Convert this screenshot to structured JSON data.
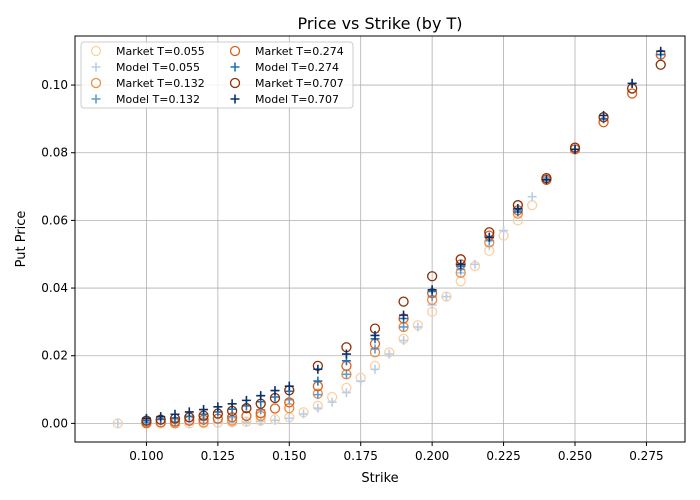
{
  "chart_data": {
    "type": "scatter",
    "title": "Price vs Strike (by T)",
    "xlabel": "Strike",
    "ylabel": "Put Price",
    "xlim": [
      0.075,
      0.2885
    ],
    "ylim": [
      -0.0055,
      0.1145
    ],
    "xticks": [
      0.1,
      0.125,
      0.15,
      0.175,
      0.2,
      0.225,
      0.25,
      0.275
    ],
    "xtick_labels": [
      "0.100",
      "0.125",
      "0.150",
      "0.175",
      "0.200",
      "0.225",
      "0.250",
      "0.275"
    ],
    "yticks": [
      0.0,
      0.02,
      0.04,
      0.06,
      0.08,
      0.1
    ],
    "ytick_labels": [
      "0.00",
      "0.02",
      "0.04",
      "0.06",
      "0.08",
      "0.10"
    ],
    "grid": true,
    "legend": {
      "placement": "top-left",
      "columns": 2,
      "entries": [
        {
          "label": "Market T=0.055",
          "marker": "circle",
          "color": "#fdd0a2"
        },
        {
          "label": "Model  T=0.055",
          "marker": "plus",
          "color": "#b7cfe8"
        },
        {
          "label": "Market T=0.132",
          "marker": "circle",
          "color": "#f08c3e"
        },
        {
          "label": "Model  T=0.132",
          "marker": "plus",
          "color": "#5e9ccf"
        },
        {
          "label": "Market T=0.274",
          "marker": "circle",
          "color": "#d95f1e"
        },
        {
          "label": "Model  T=0.274",
          "marker": "plus",
          "color": "#2171b5"
        },
        {
          "label": "Market T=0.707",
          "marker": "circle",
          "color": "#8c2d04"
        },
        {
          "label": "Model  T=0.707",
          "marker": "plus",
          "color": "#08306b"
        }
      ]
    },
    "series": [
      {
        "name": "Market T=0.055",
        "marker": "circle",
        "color": "#fdd0a2",
        "x": [
          0.09,
          0.1,
          0.105,
          0.11,
          0.115,
          0.12,
          0.125,
          0.13,
          0.135,
          0.14,
          0.145,
          0.15,
          0.155,
          0.16,
          0.165,
          0.17,
          0.175,
          0.18,
          0.185,
          0.19,
          0.195,
          0.2,
          0.205,
          0.21,
          0.215,
          0.22,
          0.225,
          0.23,
          0.235
        ],
        "y": [
          0.0,
          0.0,
          0.0,
          0.0,
          0.0,
          0.0001,
          0.0002,
          0.0003,
          0.0005,
          0.0008,
          0.0012,
          0.0018,
          0.0033,
          0.0052,
          0.0078,
          0.0105,
          0.0135,
          0.017,
          0.021,
          0.025,
          0.029,
          0.033,
          0.0375,
          0.042,
          0.0465,
          0.051,
          0.0555,
          0.06,
          0.0645
        ]
      },
      {
        "name": "Model  T=0.055",
        "marker": "plus",
        "color": "#b7cfe8",
        "x": [
          0.09,
          0.1,
          0.105,
          0.11,
          0.115,
          0.12,
          0.125,
          0.13,
          0.135,
          0.14,
          0.145,
          0.15,
          0.155,
          0.16,
          0.165,
          0.17,
          0.175,
          0.18,
          0.185,
          0.19,
          0.195,
          0.2,
          0.205,
          0.21,
          0.215,
          0.22,
          0.225,
          0.23,
          0.235
        ],
        "y": [
          0.0,
          0.0,
          0.0,
          0.0,
          0.0,
          0.0001,
          0.0001,
          0.0002,
          0.0004,
          0.0006,
          0.0009,
          0.0015,
          0.0028,
          0.0045,
          0.0063,
          0.0091,
          0.0125,
          0.016,
          0.0205,
          0.0245,
          0.0285,
          0.035,
          0.0375,
          0.0445,
          0.047,
          0.0525,
          0.057,
          0.0625,
          0.067
        ]
      },
      {
        "name": "Market T=0.132",
        "marker": "circle",
        "color": "#f08c3e",
        "x": [
          0.1,
          0.11,
          0.12,
          0.13,
          0.14,
          0.15,
          0.16,
          0.17,
          0.18,
          0.19,
          0.2,
          0.21,
          0.22,
          0.23,
          0.24
        ],
        "y": [
          0.0,
          0.0,
          0.0003,
          0.0008,
          0.0022,
          0.0045,
          0.0088,
          0.0145,
          0.021,
          0.0285,
          0.0365,
          0.0445,
          0.0535,
          0.062,
          0.072
        ]
      },
      {
        "name": "Model  T=0.132",
        "marker": "plus",
        "color": "#5e9ccf",
        "x": [
          0.1,
          0.11,
          0.12,
          0.13,
          0.14,
          0.15,
          0.16,
          0.17,
          0.18,
          0.19,
          0.2,
          0.21,
          0.22,
          0.23,
          0.24
        ],
        "y": [
          0.0002,
          0.0005,
          0.001,
          0.002,
          0.004,
          0.007,
          0.0085,
          0.0145,
          0.022,
          0.0285,
          0.0375,
          0.0455,
          0.054,
          0.063,
          0.0725
        ]
      },
      {
        "name": "Market T=0.274",
        "marker": "circle",
        "color": "#d95f1e",
        "x": [
          0.1,
          0.105,
          0.11,
          0.115,
          0.12,
          0.125,
          0.13,
          0.135,
          0.14,
          0.145,
          0.15,
          0.16,
          0.17,
          0.18,
          0.19,
          0.2,
          0.21,
          0.22,
          0.23,
          0.24,
          0.25,
          0.26,
          0.27,
          0.28
        ],
        "y": [
          0.0002,
          0.0003,
          0.0005,
          0.0008,
          0.0011,
          0.0014,
          0.0018,
          0.0022,
          0.003,
          0.0044,
          0.0062,
          0.011,
          0.017,
          0.0235,
          0.031,
          0.0385,
          0.047,
          0.0555,
          0.063,
          0.072,
          0.081,
          0.089,
          0.0975,
          0.109
        ]
      },
      {
        "name": "Model  T=0.274",
        "marker": "plus",
        "color": "#2171b5",
        "x": [
          0.1,
          0.105,
          0.11,
          0.115,
          0.12,
          0.125,
          0.13,
          0.135,
          0.14,
          0.145,
          0.15,
          0.16,
          0.17,
          0.18,
          0.19,
          0.2,
          0.21,
          0.22,
          0.23,
          0.24,
          0.25,
          0.26,
          0.27,
          0.28
        ],
        "y": [
          0.0008,
          0.0012,
          0.0016,
          0.0021,
          0.0027,
          0.0034,
          0.0042,
          0.0052,
          0.0064,
          0.0078,
          0.0095,
          0.0125,
          0.0185,
          0.025,
          0.031,
          0.039,
          0.0465,
          0.055,
          0.0625,
          0.072,
          0.081,
          0.09,
          0.1005,
          0.109
        ]
      },
      {
        "name": "Market T=0.707",
        "marker": "circle",
        "color": "#8c2d04",
        "x": [
          0.1,
          0.105,
          0.11,
          0.115,
          0.12,
          0.125,
          0.13,
          0.135,
          0.14,
          0.145,
          0.15,
          0.16,
          0.17,
          0.18,
          0.19,
          0.2,
          0.21,
          0.22,
          0.23,
          0.24,
          0.25,
          0.26,
          0.27,
          0.28
        ],
        "y": [
          0.0008,
          0.0011,
          0.0014,
          0.0018,
          0.0023,
          0.0029,
          0.0037,
          0.0045,
          0.0058,
          0.0075,
          0.0098,
          0.017,
          0.0225,
          0.028,
          0.036,
          0.0435,
          0.0485,
          0.0565,
          0.0645,
          0.0725,
          0.0815,
          0.0905,
          0.099,
          0.106
        ]
      },
      {
        "name": "Model  T=0.707",
        "marker": "plus",
        "color": "#08306b",
        "x": [
          0.1,
          0.105,
          0.11,
          0.115,
          0.12,
          0.125,
          0.13,
          0.135,
          0.14,
          0.145,
          0.15,
          0.16,
          0.17,
          0.18,
          0.19,
          0.2,
          0.21,
          0.22,
          0.23,
          0.24,
          0.25,
          0.26,
          0.27,
          0.28
        ],
        "y": [
          0.0015,
          0.002,
          0.0027,
          0.0034,
          0.0041,
          0.0049,
          0.0058,
          0.0068,
          0.0082,
          0.0097,
          0.011,
          0.016,
          0.0205,
          0.026,
          0.032,
          0.0395,
          0.047,
          0.055,
          0.0635,
          0.072,
          0.081,
          0.091,
          0.1005,
          0.11
        ]
      }
    ]
  }
}
